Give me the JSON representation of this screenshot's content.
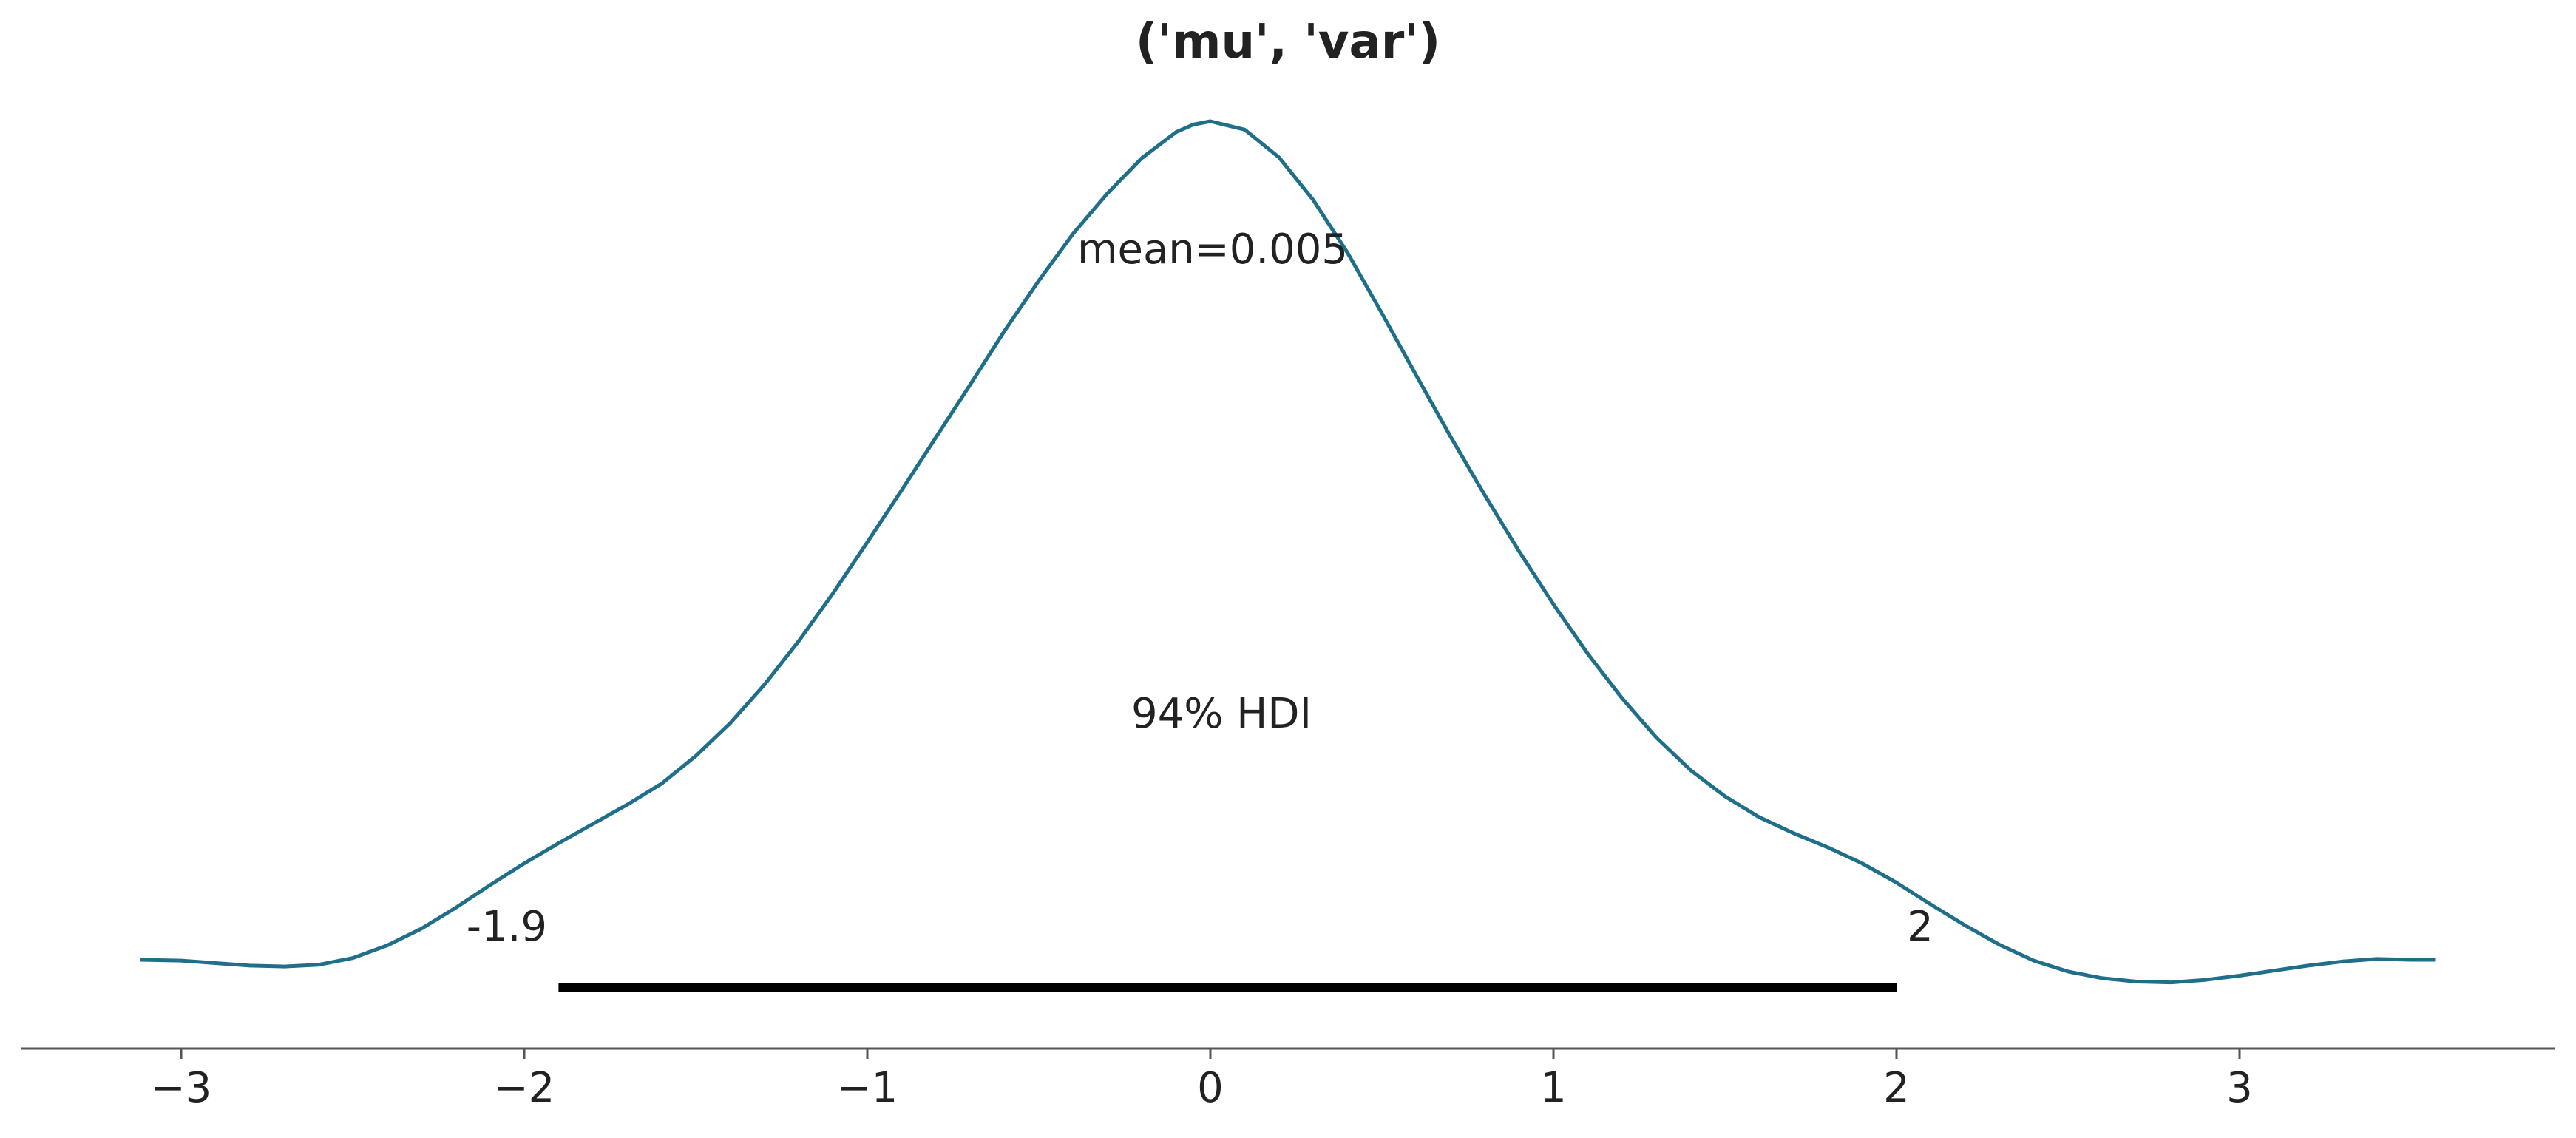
{
  "chart_data": {
    "type": "area",
    "title": "('mu', 'var')",
    "xlabel": "",
    "ylabel": "",
    "xlim": [
      -3.45,
      3.9
    ],
    "grid": false,
    "line_color": "#1f6f8b",
    "series": [
      {
        "x": [
          -3.12,
          -3.0,
          -2.9,
          -2.8,
          -2.7,
          -2.6,
          -2.5,
          -2.4,
          -2.3,
          -2.2,
          -2.1,
          -2.0,
          -1.9,
          -1.8,
          -1.7,
          -1.6,
          -1.5,
          -1.4,
          -1.3,
          -1.2,
          -1.1,
          -1.0,
          -0.9,
          -0.8,
          -0.7,
          -0.6,
          -0.5,
          -0.4,
          -0.3,
          -0.2,
          -0.1,
          -0.05,
          0.0,
          0.1,
          0.2,
          0.3,
          0.4,
          0.5,
          0.6,
          0.7,
          0.8,
          0.9,
          1.0,
          1.1,
          1.2,
          1.3,
          1.4,
          1.5,
          1.6,
          1.7,
          1.8,
          1.9,
          2.0,
          2.1,
          2.2,
          2.3,
          2.4,
          2.5,
          2.6,
          2.7,
          2.8,
          2.9,
          3.0,
          3.1,
          3.2,
          3.3,
          3.4,
          3.5,
          3.57
        ],
        "y": [
          0.0,
          -0.001,
          -0.004,
          -0.007,
          -0.008,
          -0.006,
          0.002,
          0.017,
          0.037,
          0.062,
          0.089,
          0.115,
          0.139,
          0.162,
          0.185,
          0.21,
          0.243,
          0.282,
          0.328,
          0.38,
          0.437,
          0.498,
          0.56,
          0.623,
          0.686,
          0.75,
          0.81,
          0.866,
          0.914,
          0.956,
          0.987,
          0.996,
          1.0,
          0.99,
          0.957,
          0.906,
          0.843,
          0.771,
          0.697,
          0.624,
          0.554,
          0.487,
          0.424,
          0.365,
          0.312,
          0.265,
          0.226,
          0.195,
          0.17,
          0.151,
          0.134,
          0.115,
          0.092,
          0.066,
          0.041,
          0.018,
          -0.001,
          -0.014,
          -0.022,
          -0.026,
          -0.027,
          -0.024,
          -0.019,
          -0.013,
          -0.007,
          -0.002,
          0.001,
          0.0,
          0.0
        ]
      }
    ],
    "xticks": [
      -3,
      -2,
      -1,
      0,
      1,
      2,
      3
    ],
    "xtick_labels": [
      "−3",
      "−2",
      "−1",
      "0",
      "1",
      "2",
      "3"
    ],
    "mean_label": "mean=0.005",
    "hdi": {
      "label": "94% HDI",
      "lower": -1.9,
      "upper": 2.0,
      "lower_label": "-1.9",
      "upper_label": "2"
    }
  }
}
